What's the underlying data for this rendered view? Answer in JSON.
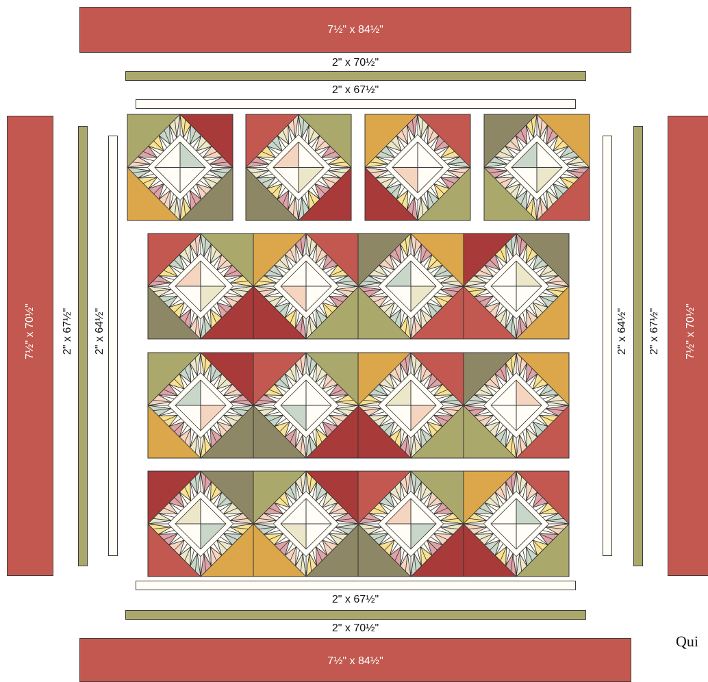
{
  "borders": {
    "outer_top": "7½\" x 84½\"",
    "middle_top": "2\" x 70½\"",
    "inner_top": "2\" x 67½\"",
    "outer_left": "7½\" x 70½\"",
    "middle_left": "2\" x 67½\"",
    "inner_left": "2\" x 64½\"",
    "inner_right": "2\" x 64½\"",
    "middle_right": "2\" x 67½\"",
    "outer_right": "7½\" x 70½\"",
    "inner_bottom": "2\" x 67½\"",
    "middle_bottom": "2\" x 70½\"",
    "outer_bottom": "7½\" x 84½\""
  },
  "footer_text": "Qui",
  "colors": {
    "red_border": "#c2584f",
    "olive_border": "#aba86c",
    "cream": "#fffdf5",
    "deep_red": "#a83a3a",
    "brick": "#c2584f",
    "olive_dark": "#8e8765",
    "sage": "#aba86c",
    "gold": "#dba74a",
    "peach": "#f5d5c0",
    "mint": "#c9d7c8",
    "pale_yellow": "#ece7c8",
    "pink": "#dea3a7",
    "yellow": "#f8e190"
  },
  "blocks": {
    "top_row_count": 4,
    "main_rows": 3,
    "main_cols": 4
  }
}
